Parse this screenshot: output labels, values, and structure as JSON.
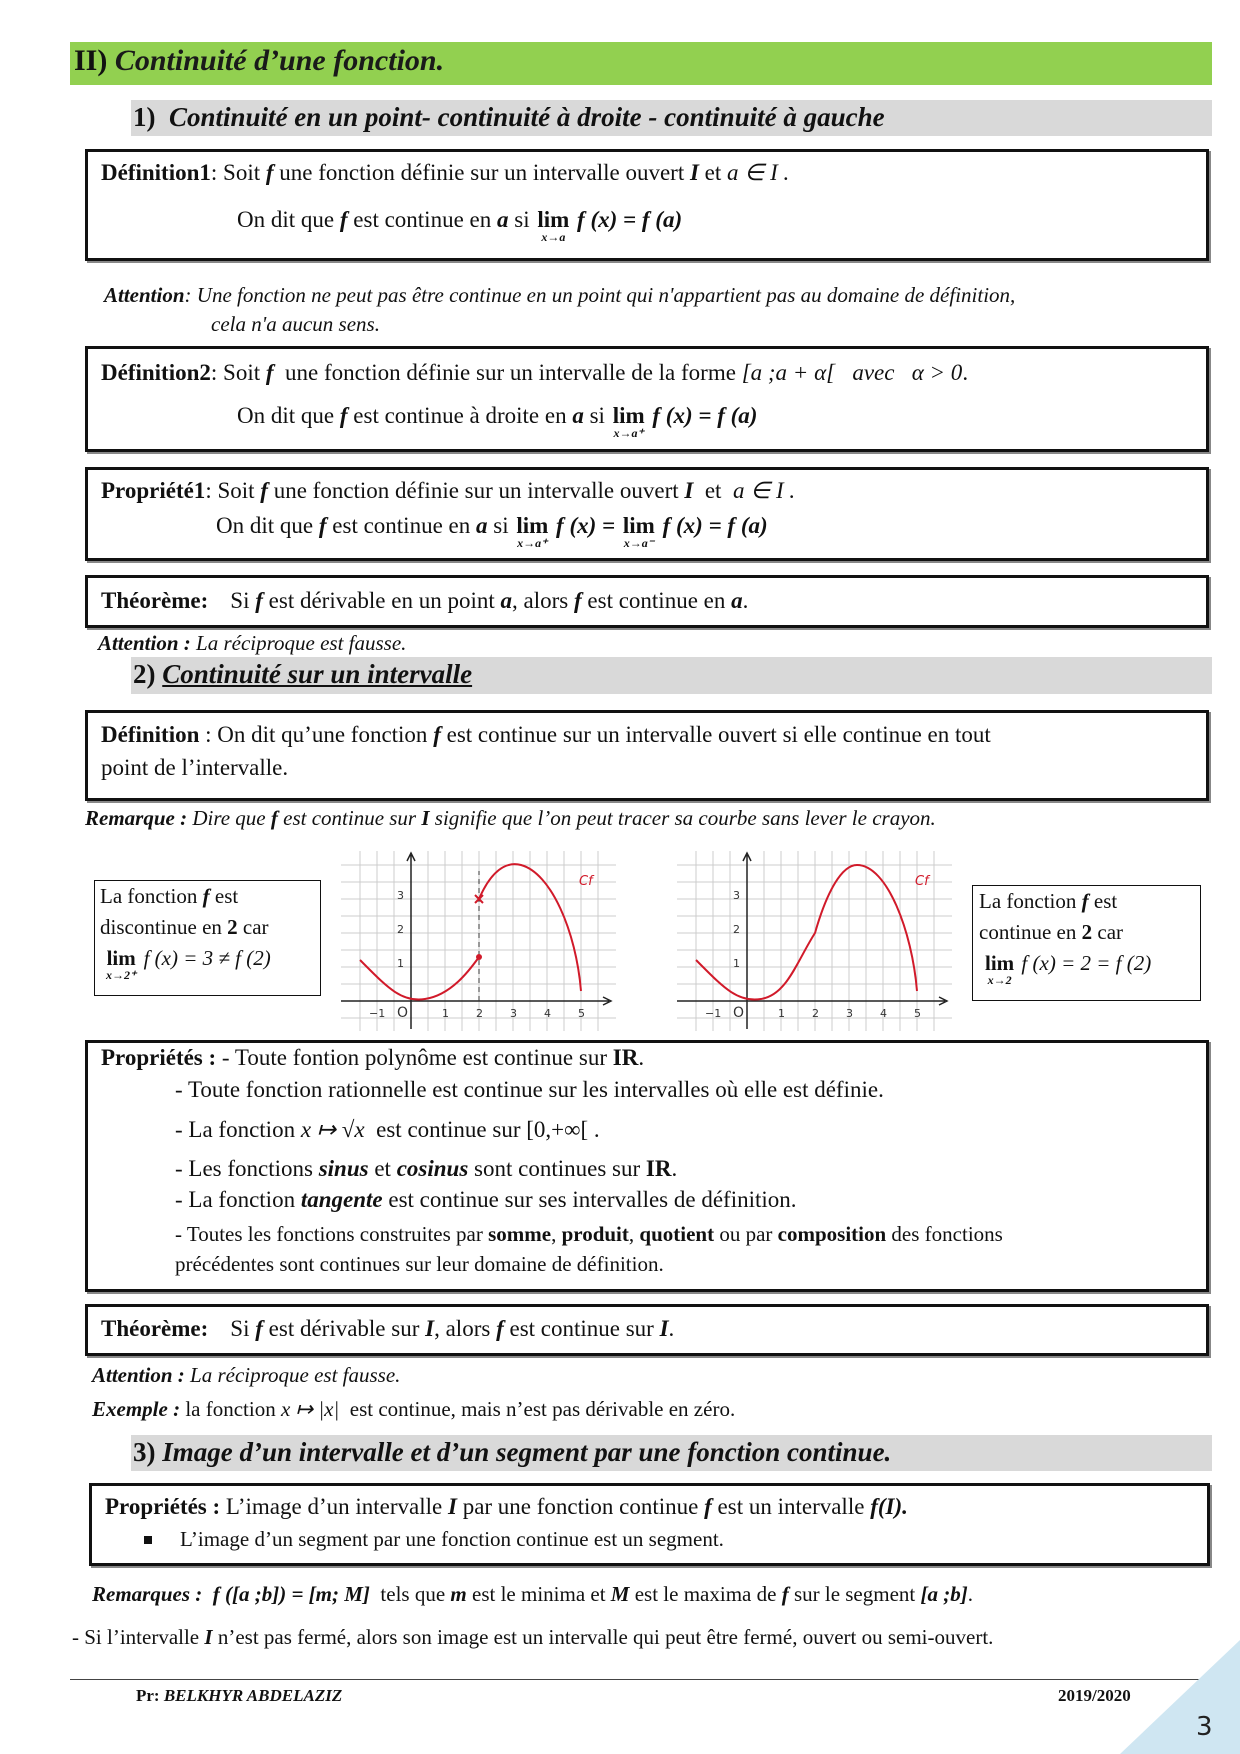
{
  "header": {
    "number": "II)",
    "title": "Continuité d’une fonction."
  },
  "sections": [
    {
      "number": "1)",
      "title": "Continuité en un point- continuité à droite - continuité à gauche"
    },
    {
      "number": "2)",
      "title": "Continuité sur un intervalle"
    },
    {
      "number": "3)",
      "title": "Image d’un intervalle et d’un segment par une fonction continue."
    }
  ],
  "def1": {
    "line1": [
      "Définition1",
      ": Soit ",
      "f",
      " une fonction définie sur un intervalle ouvert ",
      "I",
      " et ",
      "a ∈ I ."
    ],
    "line2": [
      "On dit que ",
      "f",
      " est continue en ",
      "a",
      " si ",
      "lim",
      "x→a",
      " f (x) = f (a)"
    ]
  },
  "attention1": {
    "line1": [
      "Attention",
      ": Une fonction ne peut pas être continue en un point qui n'appartient pas au domaine de définition,"
    ],
    "line2": [
      "cela n'a aucun sens."
    ]
  },
  "def2": {
    "line1": [
      "Définition2",
      ": Soit ",
      "f",
      "  une fonction définie sur un intervalle de la forme ",
      "[a ;a + α[   avec   α > 0",
      "."
    ],
    "line2": [
      "On dit que ",
      "f",
      " est continue à droite en ",
      "a",
      " si ",
      "lim",
      "x→a⁺",
      " f (x) = f (a)"
    ]
  },
  "prop1": {
    "line1": [
      "Propriété1",
      ": Soit ",
      "f",
      " une fonction définie sur un intervalle ouvert ",
      "I",
      "  et  ",
      "a ∈ I ."
    ],
    "line2": [
      "On dit que ",
      "f",
      " est continue en ",
      "a",
      " si ",
      "lim",
      "x→a⁺",
      " f (x) = ",
      "lim",
      "x→a⁻",
      " f (x) = f (a)"
    ]
  },
  "theorem1": [
    "Théorème:",
    "Si ",
    "f",
    " est dérivable en un point ",
    "a",
    ", alors ",
    "f",
    " est continue en ",
    "a",
    "."
  ],
  "attention2": [
    "Attention :",
    " La réciproque est fausse."
  ],
  "def3": {
    "line1": [
      "Définition",
      " : On dit qu’une fonction ",
      "f",
      " est continue sur un intervalle ouvert si elle continue en tout"
    ],
    "line2": [
      "point de l’intervalle."
    ]
  },
  "remarque": [
    "Remarque :",
    " Dire que ",
    "f",
    " est continue sur ",
    "I",
    " signifie que l’on peut tracer sa courbe sans lever le crayon."
  ],
  "left_box": {
    "line1": [
      "La fonction ",
      "f",
      " est"
    ],
    "line2": [
      "discontinue en ",
      "2",
      " car"
    ],
    "line3": [
      "lim",
      "x→2⁺",
      " f (x) = 3 ≠ f (2)"
    ]
  },
  "right_box": {
    "line1": [
      "La fonction ",
      "f",
      " est"
    ],
    "line2": [
      "continue en ",
      "2",
      " car"
    ],
    "line3": [
      "lim",
      "x→2",
      " f (x) = 2 = f (2)"
    ]
  },
  "graphs": [
    {
      "y_labels": [
        "3",
        "2",
        "1"
      ],
      "x_labels": [
        "−1",
        "O",
        "1",
        "2",
        "3",
        "4",
        "5"
      ],
      "curve": "Cf"
    },
    {
      "y_labels": [
        "3",
        "2",
        "1"
      ],
      "x_labels": [
        "−1",
        "O",
        "1",
        "2",
        "3",
        "4",
        "5"
      ],
      "curve": "Cf"
    }
  ],
  "properties": {
    "line1": [
      "Propriétés :",
      " - Toute fontion polynôme est continue sur ",
      "IR",
      "."
    ],
    "line2": [
      "- Toute fonction rationnelle est continue sur les intervalles où elle est définie."
    ],
    "line3": [
      "- La fonction ",
      "x ↦ √x",
      "  est continue sur ",
      "[0,+∞[ ."
    ],
    "line4": [
      "- Les fonctions ",
      "sinus",
      " et ",
      "cosinus",
      " sont continues sur ",
      "IR",
      "."
    ],
    "line5": [
      "- La fonction ",
      "tangente",
      " est continue sur ses intervalles de définition."
    ],
    "line6": [
      "- Toutes les fonctions construites par ",
      "somme",
      ", ",
      "produit",
      ", ",
      "quotient",
      " ou par ",
      "composition",
      " des fonctions"
    ],
    "line7": [
      "précédentes sont continues sur leur domaine de définition."
    ]
  },
  "theorem2": [
    "Théorème:",
    "Si ",
    "f",
    " est dérivable sur ",
    "I",
    ", alors ",
    "f",
    " est continue sur ",
    "I",
    "."
  ],
  "attention3": [
    "Attention :",
    " La réciproque est fausse."
  ],
  "exemple": [
    "Exemple :",
    " la fonction ",
    "x ↦ |x|",
    "  est continue, mais n’est pas dérivable en zéro."
  ],
  "properties3": {
    "line1": [
      "Propriétés :",
      " L’image d’un intervalle ",
      "I",
      " par une fonction continue ",
      "f",
      " est un intervalle ",
      "f(I)."
    ],
    "line2": [
      "L’image d’un segment par une fonction continue est un segment."
    ]
  },
  "remarques": [
    "Remarques :",
    "  f ([a ;b]) = [m; M]",
    "  tels que ",
    "m",
    " est le minima et ",
    "M",
    " est le maxima de ",
    "f",
    " sur le segment ",
    "[a ;b]",
    "."
  ],
  "last_line": [
    "- Si l’intervalle ",
    "I",
    " n’est pas fermé, alors son image est un intervalle qui peut être fermé, ouvert ou semi-ouvert."
  ],
  "footer": {
    "author_label": "Pr: ",
    "author": "BELKHYR ABDELAZIZ",
    "year": "2019/2020",
    "page": "3"
  }
}
